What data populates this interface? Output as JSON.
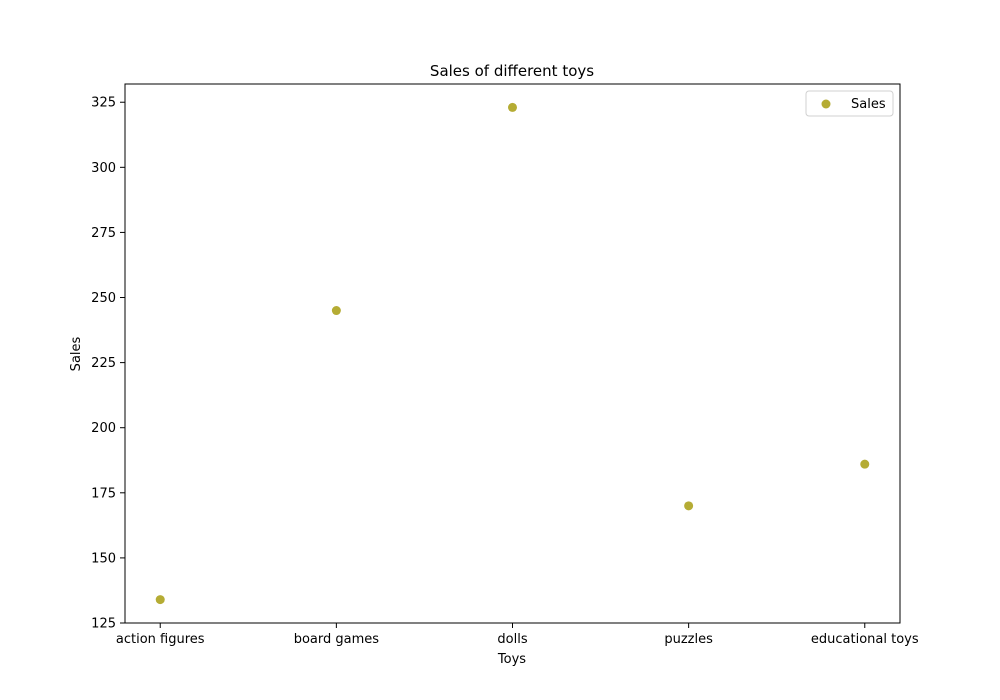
{
  "chart_data": {
    "type": "scatter",
    "title": "Sales of different toys",
    "xlabel": "Toys",
    "ylabel": "Sales",
    "categories": [
      "action figures",
      "board games",
      "dolls",
      "puzzles",
      "educational toys"
    ],
    "series": [
      {
        "name": "Sales",
        "values": [
          134,
          245,
          323,
          170,
          186
        ],
        "color": "#b5ac34"
      }
    ],
    "ylim": [
      125,
      332
    ],
    "yticks": [
      125,
      150,
      175,
      200,
      225,
      250,
      275,
      300,
      325
    ],
    "grid": false,
    "legend_position": "top-right"
  }
}
